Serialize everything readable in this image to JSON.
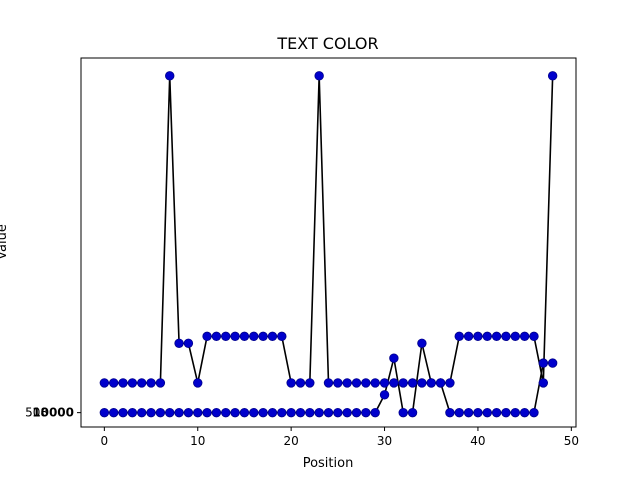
{
  "chart_data": {
    "type": "line",
    "title": "TEXT COLOR",
    "xlabel": "Position",
    "ylabel": "Value",
    "xlim": [
      -2.5,
      50.5
    ],
    "ylim": [
      -1.45,
      35.8
    ],
    "x_ticks": [
      0,
      10,
      20,
      30,
      40,
      50
    ],
    "y_tick_label": "508",
    "y_tick_overlap": "10000",
    "line_color": "#000000",
    "marker_color": "#0000cc",
    "x": [
      0,
      1,
      2,
      3,
      4,
      5,
      6,
      7,
      8,
      9,
      10,
      11,
      12,
      13,
      14,
      15,
      16,
      17,
      18,
      19,
      20,
      21,
      22,
      23,
      24,
      25,
      26,
      27,
      28,
      29,
      30,
      31,
      32,
      33,
      34,
      35,
      36,
      37,
      38,
      39,
      40,
      41,
      42,
      43,
      44,
      45,
      46,
      47,
      48
    ],
    "series_a": [
      3,
      3,
      3,
      3,
      3,
      3,
      3,
      34,
      7,
      7,
      3,
      7.7,
      7.7,
      7.7,
      7.7,
      7.7,
      7.7,
      7.7,
      7.7,
      7.7,
      3,
      3,
      3,
      34,
      3,
      3,
      3,
      3,
      3,
      3,
      3,
      3,
      3,
      3,
      3,
      3,
      3,
      3,
      7.7,
      7.7,
      7.7,
      7.7,
      7.7,
      7.7,
      7.7,
      7.7,
      7.7,
      3,
      34
    ],
    "series_b": [
      0,
      0,
      0,
      0,
      0,
      0,
      0,
      0,
      0,
      0,
      0,
      0,
      0,
      0,
      0,
      0,
      0,
      0,
      0,
      0,
      0,
      0,
      0,
      0,
      0,
      0,
      0,
      0,
      0,
      0,
      1.8,
      5.5,
      0,
      0,
      7,
      3,
      3,
      0,
      0,
      0,
      0,
      0,
      0,
      0,
      0,
      0,
      0,
      5,
      5
    ]
  }
}
